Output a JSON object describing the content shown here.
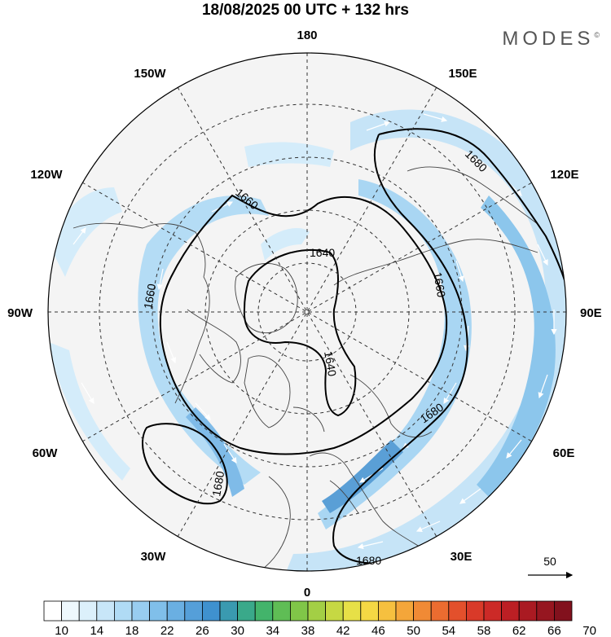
{
  "title": "18/08/2025  00 UTC  + 132 hrs",
  "brand": "MODES",
  "brand_mark": "©",
  "longitude_labels": {
    "top": "180",
    "bottom": "0",
    "left": "90W",
    "right": "90E",
    "upper_left_1": "150W",
    "upper_left_2": "120W",
    "upper_right_1": "150E",
    "upper_right_2": "120E",
    "lower_left_1": "60W",
    "lower_left_2": "30W",
    "lower_right_1": "60E",
    "lower_right_2": "30E"
  },
  "contour_labels": [
    "1640",
    "1640",
    "1660",
    "1660",
    "1660",
    "1680",
    "1680",
    "1680",
    "1680"
  ],
  "vector_reference": "50",
  "colorbar": {
    "ticks": [
      "10",
      "14",
      "18",
      "22",
      "26",
      "30",
      "34",
      "38",
      "42",
      "46",
      "50",
      "54",
      "58",
      "62",
      "66",
      "70"
    ],
    "colors": [
      "#ffffff",
      "#eef8fd",
      "#dcf0fb",
      "#c8e6f8",
      "#b0dbf5",
      "#98cdf0",
      "#80bfea",
      "#6aafe2",
      "#559fd9",
      "#3f91cf",
      "#3a9ab0",
      "#3aa98a",
      "#43b46b",
      "#5fbd55",
      "#80c648",
      "#a3cf45",
      "#c6d843",
      "#e7e047",
      "#f5d844",
      "#f6c03f",
      "#f4a63a",
      "#f08a35",
      "#eb6c30",
      "#e3502c",
      "#d93a29",
      "#cc2a27",
      "#bc1f24",
      "#aa1a22",
      "#961620",
      "#82111d"
    ]
  }
}
